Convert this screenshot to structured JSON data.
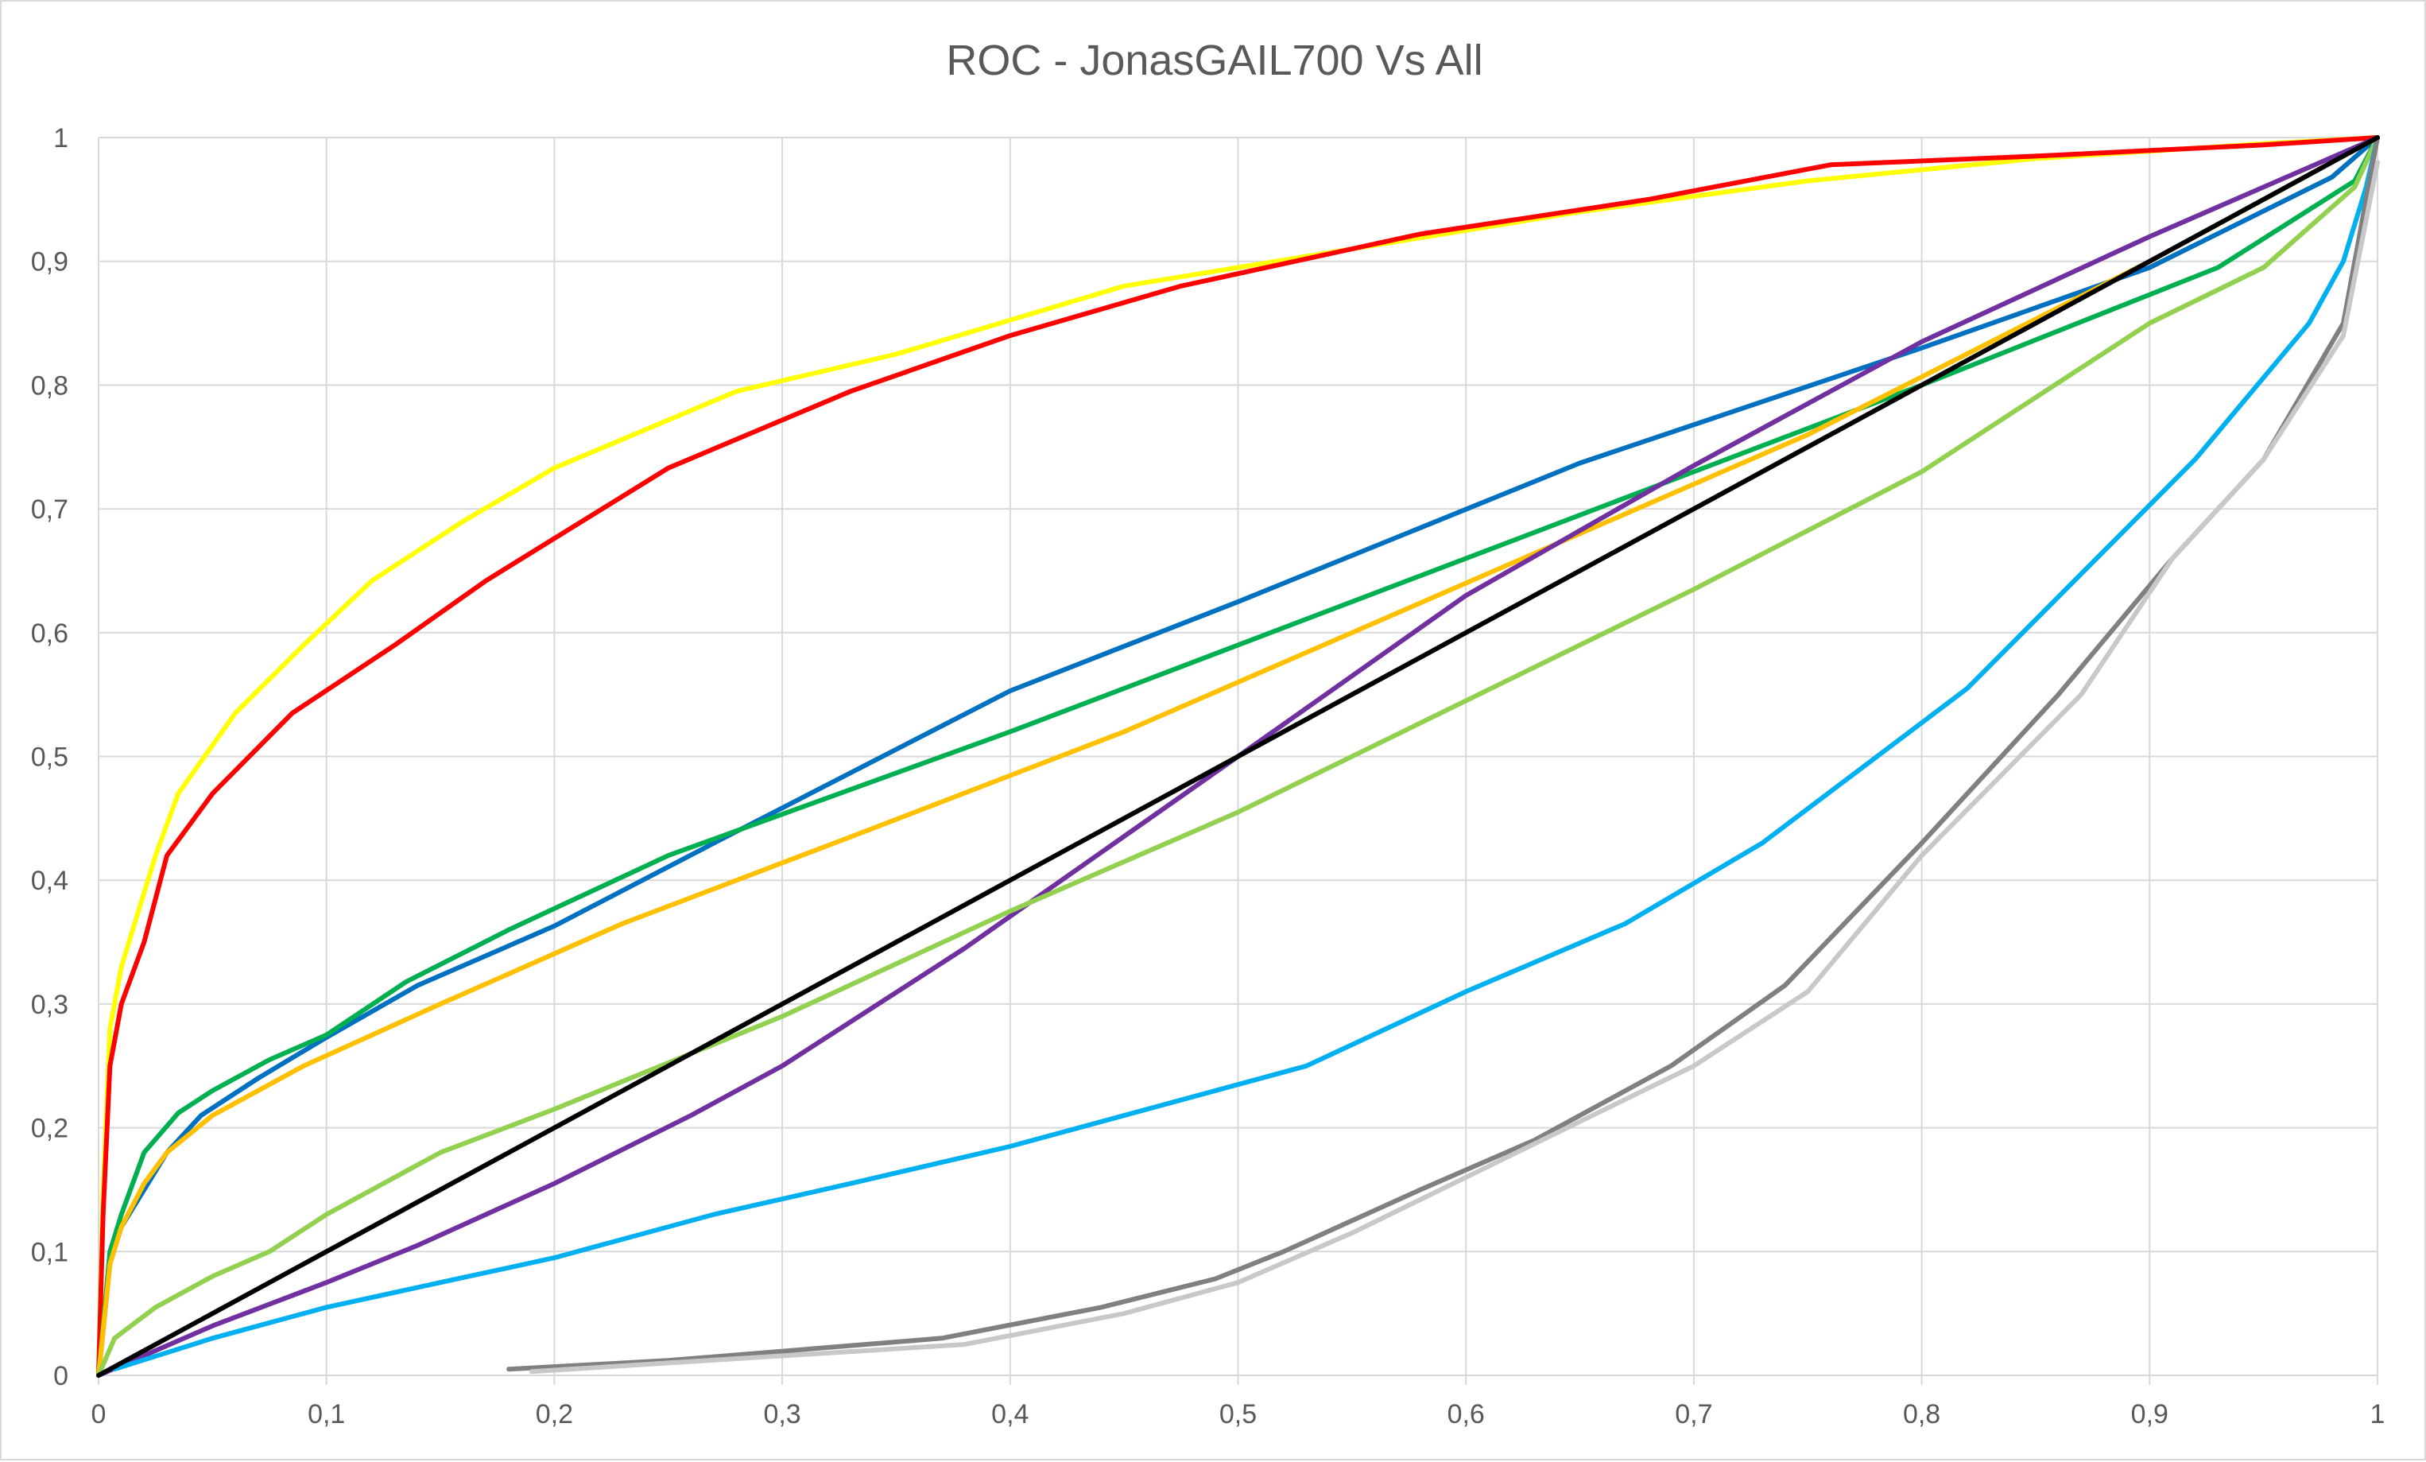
{
  "chart_data": {
    "type": "line",
    "title": "ROC - JonasGAIL700 Vs All",
    "xlabel": "",
    "ylabel": "",
    "xlim": [
      0,
      1
    ],
    "ylim": [
      0,
      1
    ],
    "grid": true,
    "x_ticks": [
      "0",
      "0,1",
      "0,2",
      "0,3",
      "0,4",
      "0,5",
      "0,6",
      "0,7",
      "0,8",
      "0,9",
      "1"
    ],
    "y_ticks": [
      "0",
      "0,1",
      "0,2",
      "0,3",
      "0,4",
      "0,5",
      "0,6",
      "0,7",
      "0,8",
      "0,9",
      "1"
    ],
    "series": [
      {
        "color": "#FFFF00",
        "x": [
          0,
          0.002,
          0.005,
          0.01,
          0.015,
          0.025,
          0.035,
          0.06,
          0.09,
          0.12,
          0.16,
          0.2,
          0.28,
          0.35,
          0.45,
          0.55,
          0.65,
          0.75,
          0.85,
          0.95,
          1
        ],
        "y": [
          0,
          0.15,
          0.28,
          0.33,
          0.36,
          0.42,
          0.47,
          0.535,
          0.59,
          0.642,
          0.69,
          0.733,
          0.795,
          0.825,
          0.88,
          0.91,
          0.94,
          0.965,
          0.983,
          0.995,
          1
        ]
      },
      {
        "color": "#FF0000",
        "x": [
          0,
          0.002,
          0.005,
          0.01,
          0.02,
          0.03,
          0.05,
          0.085,
          0.13,
          0.17,
          0.25,
          0.33,
          0.4,
          0.475,
          0.58,
          0.68,
          0.76,
          0.85,
          0.95,
          1
        ],
        "y": [
          0,
          0.13,
          0.25,
          0.3,
          0.35,
          0.42,
          0.47,
          0.535,
          0.59,
          0.642,
          0.733,
          0.795,
          0.84,
          0.88,
          0.922,
          0.95,
          0.978,
          0.985,
          0.994,
          1
        ]
      },
      {
        "color": "#0070C0",
        "x": [
          0,
          0.005,
          0.01,
          0.02,
          0.03,
          0.045,
          0.07,
          0.1,
          0.14,
          0.2,
          0.27,
          0.4,
          0.5,
          0.65,
          0.8,
          0.9,
          0.98,
          1
        ],
        "y": [
          0,
          0.09,
          0.12,
          0.15,
          0.18,
          0.21,
          0.24,
          0.273,
          0.315,
          0.363,
          0.43,
          0.553,
          0.625,
          0.737,
          0.83,
          0.895,
          0.968,
          1
        ]
      },
      {
        "color": "#00B050",
        "x": [
          0,
          0.005,
          0.01,
          0.02,
          0.035,
          0.05,
          0.075,
          0.1,
          0.135,
          0.18,
          0.25,
          0.4,
          0.6,
          0.8,
          0.93,
          0.99,
          1
        ],
        "y": [
          0,
          0.1,
          0.13,
          0.18,
          0.212,
          0.23,
          0.255,
          0.275,
          0.318,
          0.36,
          0.42,
          0.52,
          0.66,
          0.8,
          0.895,
          0.965,
          1
        ]
      },
      {
        "color": "#FFC000",
        "x": [
          0,
          0.005,
          0.01,
          0.02,
          0.03,
          0.05,
          0.09,
          0.15,
          0.23,
          0.33,
          0.45,
          0.6,
          0.75,
          0.9,
          1
        ],
        "y": [
          0,
          0.09,
          0.12,
          0.155,
          0.18,
          0.21,
          0.25,
          0.3,
          0.365,
          0.435,
          0.52,
          0.64,
          0.76,
          0.9,
          1
        ]
      },
      {
        "color": "#7030A0",
        "x": [
          0,
          0.05,
          0.1,
          0.14,
          0.2,
          0.26,
          0.3,
          0.38,
          0.5,
          0.6,
          0.7,
          0.8,
          0.9,
          1
        ],
        "y": [
          0,
          0.04,
          0.075,
          0.105,
          0.155,
          0.21,
          0.25,
          0.345,
          0.5,
          0.63,
          0.735,
          0.835,
          0.92,
          1
        ]
      },
      {
        "color": "#92D050",
        "x": [
          0,
          0.007,
          0.025,
          0.05,
          0.075,
          0.1,
          0.15,
          0.2,
          0.3,
          0.4,
          0.5,
          0.6,
          0.7,
          0.8,
          0.9,
          0.95,
          0.99,
          1
        ],
        "y": [
          0,
          0.03,
          0.055,
          0.08,
          0.1,
          0.13,
          0.18,
          0.215,
          0.29,
          0.375,
          0.455,
          0.545,
          0.635,
          0.73,
          0.85,
          0.895,
          0.96,
          1
        ]
      },
      {
        "color": "#00B0F0",
        "x": [
          0.007,
          0.05,
          0.1,
          0.15,
          0.2,
          0.27,
          0.33,
          0.4,
          0.53,
          0.6,
          0.67,
          0.73,
          0.82,
          0.92,
          0.97,
          0.985,
          0.995,
          1
        ],
        "y": [
          0.005,
          0.03,
          0.055,
          0.075,
          0.095,
          0.13,
          0.155,
          0.185,
          0.25,
          0.31,
          0.365,
          0.43,
          0.555,
          0.74,
          0.85,
          0.9,
          0.96,
          1
        ]
      },
      {
        "color": "#808080",
        "x": [
          0.18,
          0.25,
          0.37,
          0.44,
          0.49,
          0.52,
          0.55,
          0.58,
          0.63,
          0.69,
          0.74,
          0.8,
          0.86,
          0.91,
          0.95,
          0.985,
          1
        ],
        "y": [
          0.005,
          0.012,
          0.03,
          0.055,
          0.078,
          0.1,
          0.125,
          0.15,
          0.19,
          0.25,
          0.315,
          0.43,
          0.55,
          0.66,
          0.74,
          0.85,
          1
        ]
      },
      {
        "color": "#C8C8C8",
        "x": [
          0.19,
          0.25,
          0.38,
          0.45,
          0.5,
          0.55,
          0.6,
          0.65,
          0.7,
          0.75,
          0.8,
          0.87,
          0.91,
          0.95,
          0.985,
          1
        ],
        "y": [
          0.003,
          0.01,
          0.025,
          0.05,
          0.075,
          0.115,
          0.16,
          0.205,
          0.25,
          0.31,
          0.42,
          0.55,
          0.66,
          0.74,
          0.84,
          0.98
        ]
      },
      {
        "color": "#000000",
        "x": [
          0,
          1
        ],
        "y": [
          0,
          1
        ]
      }
    ]
  }
}
